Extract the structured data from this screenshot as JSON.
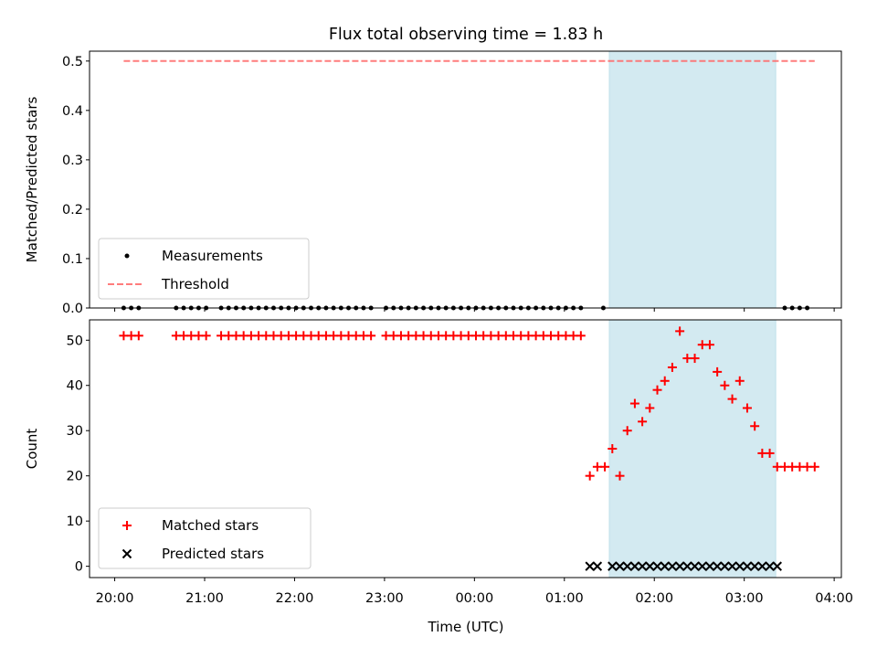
{
  "chart_data": {
    "title": "Flux total observing time = 1.83 h",
    "xlabel": "Time (UTC)",
    "x_ticks": [
      "20:00",
      "21:00",
      "22:00",
      "23:00",
      "00:00",
      "01:00",
      "02:00",
      "03:00",
      "04:00"
    ],
    "highlight_span": [
      "01:30",
      "03:21"
    ],
    "colors": {
      "matched": "#ff0000",
      "predicted": "#000000",
      "measurements": "#000000",
      "threshold": "#ff6666",
      "highlight": "#d3eaf1"
    },
    "panels": [
      {
        "type": "scatter",
        "ylabel": "Matched/Predicted stars",
        "ylim": [
          0,
          0.52
        ],
        "y_ticks": [
          "0.0",
          "0.1",
          "0.2",
          "0.3",
          "0.4",
          "0.5"
        ],
        "legend_position": "lower-left",
        "series": [
          {
            "name": "Measurements",
            "marker": "dot",
            "x": [
              "20:06",
              "20:11",
              "20:16",
              "20:41",
              "20:46",
              "20:51",
              "20:56",
              "21:01",
              "21:11",
              "21:16",
              "21:21",
              "21:26",
              "21:31",
              "21:36",
              "21:41",
              "21:46",
              "21:51",
              "21:56",
              "22:01",
              "22:06",
              "22:11",
              "22:16",
              "22:21",
              "22:26",
              "22:31",
              "22:36",
              "22:41",
              "22:46",
              "22:51",
              "23:01",
              "23:06",
              "23:11",
              "23:16",
              "23:21",
              "23:26",
              "23:31",
              "23:36",
              "23:41",
              "23:46",
              "23:51",
              "23:56",
              "00:01",
              "00:06",
              "00:11",
              "00:16",
              "00:21",
              "00:26",
              "00:31",
              "00:36",
              "00:41",
              "00:46",
              "00:51",
              "00:56",
              "01:01",
              "01:06",
              "01:11",
              "01:26",
              "03:27",
              "03:32",
              "03:37",
              "03:42"
            ],
            "y": [
              0,
              0,
              0,
              0,
              0,
              0,
              0,
              0,
              0,
              0,
              0,
              0,
              0,
              0,
              0,
              0,
              0,
              0,
              0,
              0,
              0,
              0,
              0,
              0,
              0,
              0,
              0,
              0,
              0,
              0,
              0,
              0,
              0,
              0,
              0,
              0,
              0,
              0,
              0,
              0,
              0,
              0,
              0,
              0,
              0,
              0,
              0,
              0,
              0,
              0,
              0,
              0,
              0,
              0,
              0,
              0,
              0,
              0,
              0,
              0,
              0
            ]
          },
          {
            "name": "Threshold",
            "line": "dashed",
            "x": [
              "20:06",
              "03:47"
            ],
            "y": [
              0.5,
              0.5
            ]
          }
        ]
      },
      {
        "type": "scatter",
        "ylabel": "Count",
        "ylim": [
          -2.5,
          54.5
        ],
        "y_ticks": [
          "0",
          "10",
          "20",
          "30",
          "40",
          "50"
        ],
        "legend_position": "lower-left",
        "series": [
          {
            "name": "Matched stars",
            "marker": "plus",
            "x": [
              "20:06",
              "20:11",
              "20:16",
              "20:41",
              "20:46",
              "20:51",
              "20:56",
              "21:01",
              "21:11",
              "21:16",
              "21:21",
              "21:26",
              "21:31",
              "21:36",
              "21:41",
              "21:46",
              "21:51",
              "21:56",
              "22:01",
              "22:06",
              "22:11",
              "22:16",
              "22:21",
              "22:26",
              "22:31",
              "22:36",
              "22:41",
              "22:46",
              "22:51",
              "23:01",
              "23:06",
              "23:11",
              "23:16",
              "23:21",
              "23:26",
              "23:31",
              "23:36",
              "23:41",
              "23:46",
              "23:51",
              "23:56",
              "00:01",
              "00:06",
              "00:11",
              "00:16",
              "00:21",
              "00:26",
              "00:31",
              "00:36",
              "00:41",
              "00:46",
              "00:51",
              "00:56",
              "01:01",
              "01:06",
              "01:11",
              "01:17",
              "01:22",
              "01:27",
              "01:32",
              "01:37",
              "01:42",
              "01:47",
              "01:52",
              "01:57",
              "02:02",
              "02:07",
              "02:12",
              "02:17",
              "02:22",
              "02:27",
              "02:32",
              "02:37",
              "02:42",
              "02:47",
              "02:52",
              "02:57",
              "03:02",
              "03:07",
              "03:12",
              "03:17",
              "03:22",
              "03:27",
              "03:32",
              "03:37",
              "03:42",
              "03:47"
            ],
            "y": [
              51,
              51,
              51,
              51,
              51,
              51,
              51,
              51,
              51,
              51,
              51,
              51,
              51,
              51,
              51,
              51,
              51,
              51,
              51,
              51,
              51,
              51,
              51,
              51,
              51,
              51,
              51,
              51,
              51,
              51,
              51,
              51,
              51,
              51,
              51,
              51,
              51,
              51,
              51,
              51,
              51,
              51,
              51,
              51,
              51,
              51,
              51,
              51,
              51,
              51,
              51,
              51,
              51,
              51,
              51,
              51,
              20,
              22,
              22,
              26,
              20,
              30,
              36,
              32,
              35,
              39,
              41,
              44,
              52,
              46,
              46,
              49,
              49,
              43,
              40,
              37,
              41,
              35,
              31,
              25,
              25,
              22,
              22,
              22,
              22,
              22,
              22
            ]
          },
          {
            "name": "Predicted stars",
            "marker": "x",
            "x": [
              "01:17",
              "01:22",
              "01:32",
              "01:37",
              "01:42",
              "01:47",
              "01:52",
              "01:57",
              "02:02",
              "02:07",
              "02:12",
              "02:17",
              "02:22",
              "02:27",
              "02:32",
              "02:37",
              "02:42",
              "02:47",
              "02:52",
              "02:57",
              "03:02",
              "03:07",
              "03:12",
              "03:17",
              "03:22"
            ],
            "y": [
              0,
              0,
              0,
              0,
              0,
              0,
              0,
              0,
              0,
              0,
              0,
              0,
              0,
              0,
              0,
              0,
              0,
              0,
              0,
              0,
              0,
              0,
              0,
              0,
              0
            ]
          }
        ]
      }
    ]
  }
}
